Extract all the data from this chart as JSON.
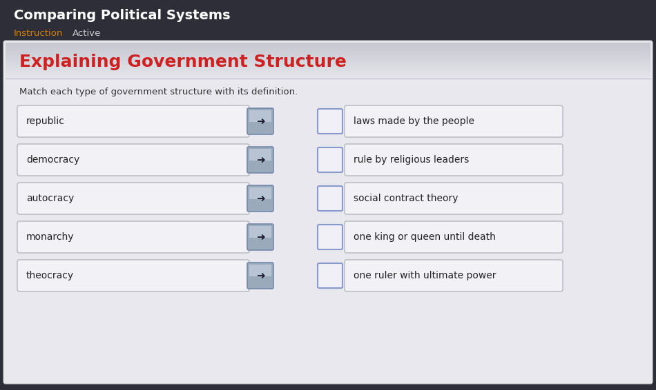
{
  "title": "Comparing Political Systems",
  "tab1": "Instruction",
  "tab2": "Active",
  "subtitle": "Explaining Government Structure",
  "instruction": "Match each type of government structure with its definition.",
  "left_terms": [
    "republic",
    "democracy",
    "autocracy",
    "monarchy",
    "theocracy"
  ],
  "right_defs": [
    "laws made by the people",
    "rule by religious leaders",
    "social contract theory",
    "one king or queen until death",
    "one ruler with ultimate power"
  ],
  "bg_dark": "#2e2e38",
  "bg_card": "#eaeaee",
  "title_color": "#ffffff",
  "tab1_color": "#d4820a",
  "tab2_color": "#cccccc",
  "subtitle_color": "#cc2222",
  "header_bg_top": "#d0d0d8",
  "header_bg_bot": "#e8e8ec",
  "text_color": "#222222",
  "instruction_color": "#333333",
  "box_fill": "#f0f0f4",
  "box_border": "#aaaaaa",
  "arrow_btn_top": "#b0b8cc",
  "arrow_btn_bot": "#7a8aaa",
  "arrow_btn_border": "#8899bb",
  "arrow_line_colors": [
    "#448844",
    "#556677",
    "#cc3333",
    "#556677",
    "#cc3333"
  ],
  "checkbox_fill": "#f0f0f4",
  "checkbox_border": "#8899cc"
}
